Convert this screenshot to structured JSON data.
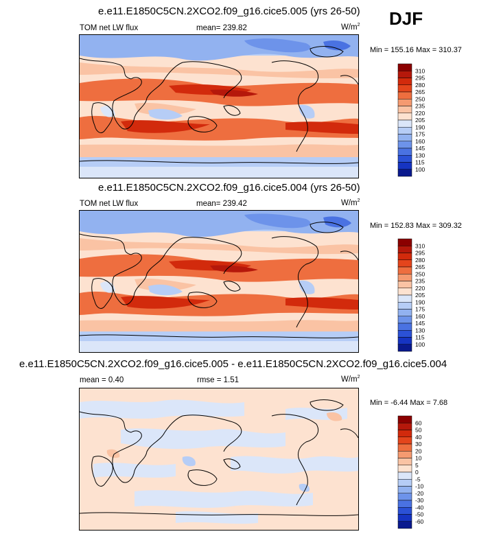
{
  "season_label": "DJF",
  "panels": [
    {
      "title": "e.e11.E1850C5CN.2XCO2.f09_g16.cice5.005 (yrs 26-50)",
      "left_label": "TOM net LW flux",
      "center_label": "mean= 239.82",
      "units": "W/m",
      "units_sup": "2",
      "minmax": "Min = 155.16 Max = 310.37"
    },
    {
      "title": "e.e11.E1850C5CN.2XCO2.f09_g16.cice5.004 (yrs 26-50)",
      "left_label": "TOM net LW flux",
      "center_label": "mean= 239.42",
      "units": "W/m",
      "units_sup": "2",
      "minmax": "Min = 152.83 Max = 309.32"
    },
    {
      "title": "e.e11.E1850C5CN.2XCO2.f09_g16.cice5.005 - e.e11.E1850C5CN.2XCO2.f09_g16.cice5.004",
      "left_label": "mean =  0.40",
      "center_label": "rmse =  1.51",
      "units": "W/m",
      "units_sup": "2",
      "minmax": "Min =  -6.44 Max =   7.68"
    }
  ],
  "chart_data": [
    {
      "type": "heatmap",
      "title": "e.e11.E1850C5CN.2XCO2.f09_g16.cice5.005 (yrs 26-50)",
      "variable": "TOM net LW flux",
      "units": "W/m2",
      "mean": 239.82,
      "min": 155.16,
      "max": 310.37,
      "colorbar_levels": [
        "310",
        "295",
        "280",
        "265",
        "250",
        "235",
        "220",
        "205",
        "190",
        "175",
        "160",
        "145",
        "130",
        "115",
        "100"
      ],
      "colorbar_colors": [
        "#8b0000",
        "#b5180b",
        "#d22a0c",
        "#e4451c",
        "#ee6e3f",
        "#f59a70",
        "#fac3a4",
        "#fde2d0",
        "#dbe6f9",
        "#b6cdf6",
        "#92b2f0",
        "#6d93ea",
        "#4a72e2",
        "#2b51d6",
        "#1634c2",
        "#0a1a8e"
      ]
    },
    {
      "type": "heatmap",
      "title": "e.e11.E1850C5CN.2XCO2.f09_g16.cice5.004 (yrs 26-50)",
      "variable": "TOM net LW flux",
      "units": "W/m2",
      "mean": 239.42,
      "min": 152.83,
      "max": 309.32,
      "colorbar_levels": [
        "310",
        "295",
        "280",
        "265",
        "250",
        "235",
        "220",
        "205",
        "190",
        "175",
        "160",
        "145",
        "130",
        "115",
        "100"
      ],
      "colorbar_colors": [
        "#8b0000",
        "#b5180b",
        "#d22a0c",
        "#e4451c",
        "#ee6e3f",
        "#f59a70",
        "#fac3a4",
        "#fde2d0",
        "#dbe6f9",
        "#b6cdf6",
        "#92b2f0",
        "#6d93ea",
        "#4a72e2",
        "#2b51d6",
        "#1634c2",
        "#0a1a8e"
      ]
    },
    {
      "type": "heatmap",
      "title": "e.e11.E1850C5CN.2XCO2.f09_g16.cice5.005 - e.e11.E1850C5CN.2XCO2.f09_g16.cice5.004",
      "units": "W/m2",
      "mean": 0.4,
      "rmse": 1.51,
      "min": -6.44,
      "max": 7.68,
      "colorbar_levels": [
        "60",
        "50",
        "40",
        "30",
        "20",
        "10",
        "5",
        "0",
        "-5",
        "-10",
        "-20",
        "-30",
        "-40",
        "-50",
        "-60"
      ],
      "colorbar_colors": [
        "#8b0000",
        "#b5180b",
        "#d22a0c",
        "#e4451c",
        "#ee6e3f",
        "#f59a70",
        "#fac3a4",
        "#fde2d0",
        "#dbe6f9",
        "#b6cdf6",
        "#92b2f0",
        "#6d93ea",
        "#4a72e2",
        "#2b51d6",
        "#1634c2",
        "#0a1a8e"
      ]
    }
  ]
}
